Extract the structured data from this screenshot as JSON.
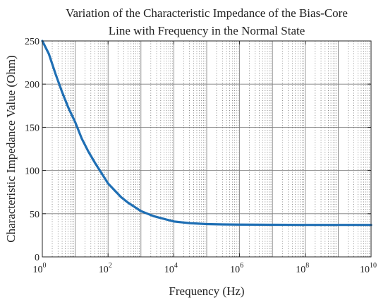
{
  "chart_data": {
    "type": "line",
    "title_lines": [
      "Variation of the Characteristic Impedance of the Bias-Core",
      "Line with Frequency in the Normal State"
    ],
    "xlabel": "Frequency  (Hz)",
    "ylabel": "Characteristic Impedance Value (Ohm)",
    "xscale": "log",
    "xlim": [
      1,
      10000000000
    ],
    "ylim": [
      0,
      250
    ],
    "x_ticks": [
      {
        "base": "10",
        "exp": "0",
        "value": 1
      },
      {
        "base": "10",
        "exp": "2",
        "value": 100
      },
      {
        "base": "10",
        "exp": "4",
        "value": 10000
      },
      {
        "base": "10",
        "exp": "6",
        "value": 1000000
      },
      {
        "base": "10",
        "exp": "8",
        "value": 100000000
      },
      {
        "base": "10",
        "exp": "10",
        "value": 10000000000
      }
    ],
    "y_ticks": [
      "0",
      "50",
      "100",
      "150",
      "200",
      "250"
    ],
    "grid": true,
    "minor_grid": true,
    "series": [
      {
        "color": "#1f6fb4",
        "x": [
          1,
          1.58,
          2.51,
          3.98,
          6.31,
          10,
          15.8,
          25.1,
          39.8,
          63.1,
          100,
          158,
          251,
          398,
          631,
          1000,
          1580,
          2510,
          3980,
          6310,
          10000,
          17800,
          31600,
          56200,
          100000,
          316000,
          1000000,
          10000000,
          100000000,
          1000000000,
          10000000000
        ],
        "y": [
          250,
          235,
          212,
          191,
          172,
          156,
          137,
          122,
          109,
          97,
          85,
          77,
          69,
          63,
          58,
          53,
          50,
          47,
          45,
          43,
          41,
          40,
          39,
          38.5,
          38,
          37.6,
          37.4,
          37.2,
          37,
          37,
          37
        ]
      }
    ]
  }
}
